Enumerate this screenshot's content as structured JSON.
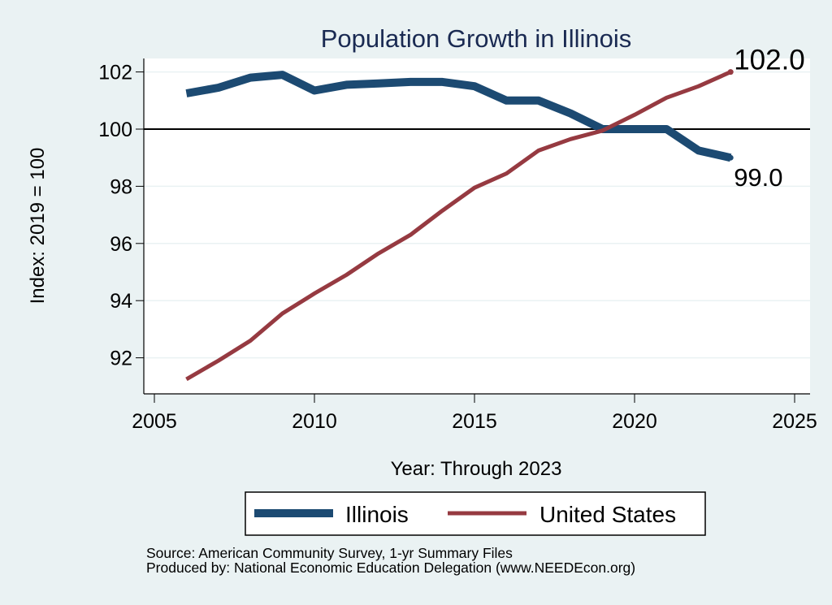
{
  "chart_data": {
    "type": "line",
    "title": "Population Growth in Illinois",
    "xlabel": "Year: Through 2023",
    "ylabel": "Index: 2019 = 100",
    "x": [
      2006,
      2007,
      2008,
      2009,
      2010,
      2011,
      2012,
      2013,
      2014,
      2015,
      2016,
      2017,
      2018,
      2019,
      2020,
      2021,
      2022,
      2023
    ],
    "series": [
      {
        "name": "Illinois",
        "color": "#1c4a72",
        "values": [
          101.25,
          101.45,
          101.8,
          101.9,
          101.35,
          101.55,
          101.6,
          101.65,
          101.65,
          101.5,
          101.0,
          101.0,
          100.55,
          100.0,
          100.0,
          100.0,
          99.25,
          99.0
        ],
        "end_label": "99.0"
      },
      {
        "name": "United States",
        "color": "#963a41",
        "values": [
          91.25,
          91.9,
          92.6,
          93.55,
          94.25,
          94.9,
          95.65,
          96.3,
          97.15,
          97.95,
          98.45,
          99.25,
          99.65,
          99.95,
          100.5,
          101.1,
          101.5,
          102.0
        ],
        "end_label": "102.0"
      }
    ],
    "xlim": [
      2004.6,
      2025.4
    ],
    "ylim": [
      90.7,
      102.5
    ],
    "xticks": [
      2005,
      2010,
      2015,
      2020,
      2025
    ],
    "xtick_labels": [
      "2005",
      "2010",
      "2015",
      "2020",
      "2025"
    ],
    "yticks": [
      92,
      94,
      96,
      98,
      100,
      102
    ],
    "ytick_labels": [
      "92",
      "94",
      "96",
      "98",
      "100",
      "102"
    ],
    "reference_line": 100,
    "grid": true,
    "legend_position": "bottom"
  },
  "footer": {
    "source": "Source: American Community Survey, 1-yr Summary Files",
    "produced_by": "Produced by: National Economic Education Delegation (www.NEEDEcon.org)"
  },
  "colors": {
    "background": "#eaf2f3",
    "plot_background": "#ffffff",
    "title": "#1a2a52"
  }
}
